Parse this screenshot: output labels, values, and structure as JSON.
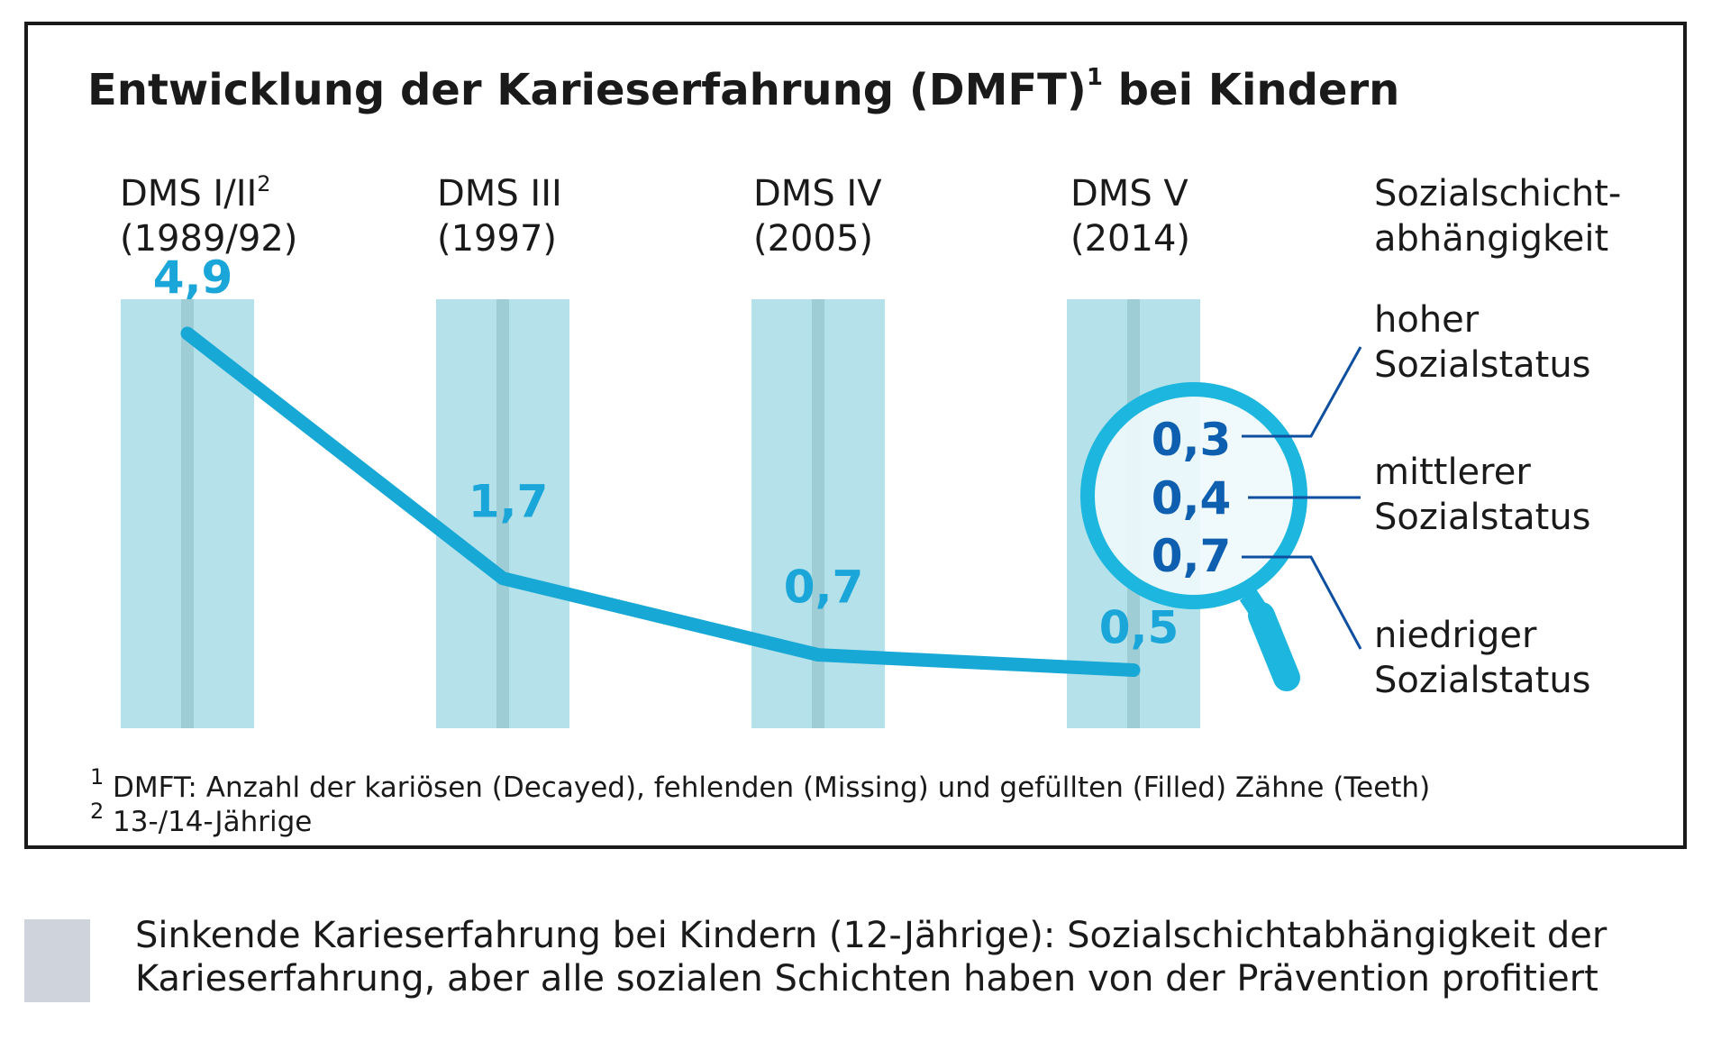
{
  "chart_data": {
    "type": "line",
    "title": "Entwicklung der Karieserfahrung (DMFT)",
    "title_sup": "1",
    "categories": [
      {
        "name": "DMS I/II",
        "sup": "2",
        "year": "(1989/92)"
      },
      {
        "name": "DMS III",
        "sup": "",
        "year": "(1997)"
      },
      {
        "name": "DMS IV",
        "sup": "",
        "year": "(2005)"
      },
      {
        "name": "DMS V",
        "sup": "",
        "year": "(2014)"
      }
    ],
    "values": [
      4.9,
      1.7,
      0.7,
      0.5
    ],
    "value_labels": [
      "4,9",
      "1,7",
      "0,7",
      "0,5"
    ],
    "title_suffix": "bei Kindern",
    "ylim": [
      0,
      5.3
    ],
    "grid": false,
    "social": {
      "heading": [
        "Sozialschicht-",
        "abhängigkeit"
      ],
      "values": [
        0.3,
        0.4,
        0.7
      ],
      "value_labels": [
        "0,3",
        "0,4",
        "0,7"
      ],
      "groups": [
        [
          "hoher",
          "Sozialstatus"
        ],
        [
          "mittlerer",
          "Sozialstatus"
        ],
        [
          "niedriger",
          "Sozialstatus"
        ]
      ]
    },
    "footnotes": [
      {
        "mark": "1",
        "text": "DMFT: Anzahl der kariösen (Decayed), fehlenden (Missing) und gefüllten (Filled) Zähne (Teeth)"
      },
      {
        "mark": "2",
        "text": "13-/14-Jährige"
      }
    ]
  },
  "caption": {
    "lines": [
      "Sinkende Karieserfahrung bei Kindern (12-Jährige): Sozialschichtabhängigkeit der",
      "Karieserfahrung, aber alle sozialen Schichten haben von der Prävention profitiert"
    ]
  },
  "colors": {
    "column_fill": "#b5e2ea",
    "column_center": "#9fcdd6",
    "line": "#17a8d6",
    "value_text": "#1aa6d8",
    "social_value_text": "#0e5fb0",
    "magnifier": "#1cb6de",
    "connector": "#0e4fa0",
    "caption_swatch": "#cfd3dc"
  }
}
